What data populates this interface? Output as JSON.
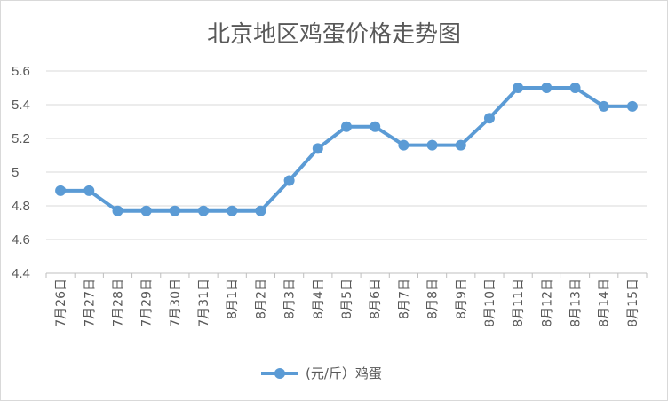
{
  "chart_data": {
    "type": "line",
    "title": "北京地区鸡蛋价格走势图",
    "categories": [
      "7月26日",
      "7月27日",
      "7月28日",
      "7月29日",
      "7月30日",
      "7月31日",
      "8月1日",
      "8月2日",
      "8月3日",
      "8月4日",
      "8月5日",
      "8月6日",
      "8月7日",
      "8月8日",
      "8月9日",
      "8月10日",
      "8月11日",
      "8月12日",
      "8月13日",
      "8月14日",
      "8月15日"
    ],
    "series": [
      {
        "name": "(元/斤）鸡蛋",
        "color": "#5b9bd5",
        "values": [
          4.89,
          4.89,
          4.77,
          4.77,
          4.77,
          4.77,
          4.77,
          4.77,
          4.95,
          5.14,
          5.27,
          5.27,
          5.16,
          5.16,
          5.16,
          5.32,
          5.5,
          5.5,
          5.5,
          5.39,
          5.39
        ]
      }
    ],
    "ylim": [
      4.4,
      5.6
    ],
    "yticks": [
      "4.4",
      "4.6",
      "4.8",
      "5",
      "5.2",
      "5.4",
      "5.6"
    ],
    "grid": true,
    "legend": "bottom"
  }
}
